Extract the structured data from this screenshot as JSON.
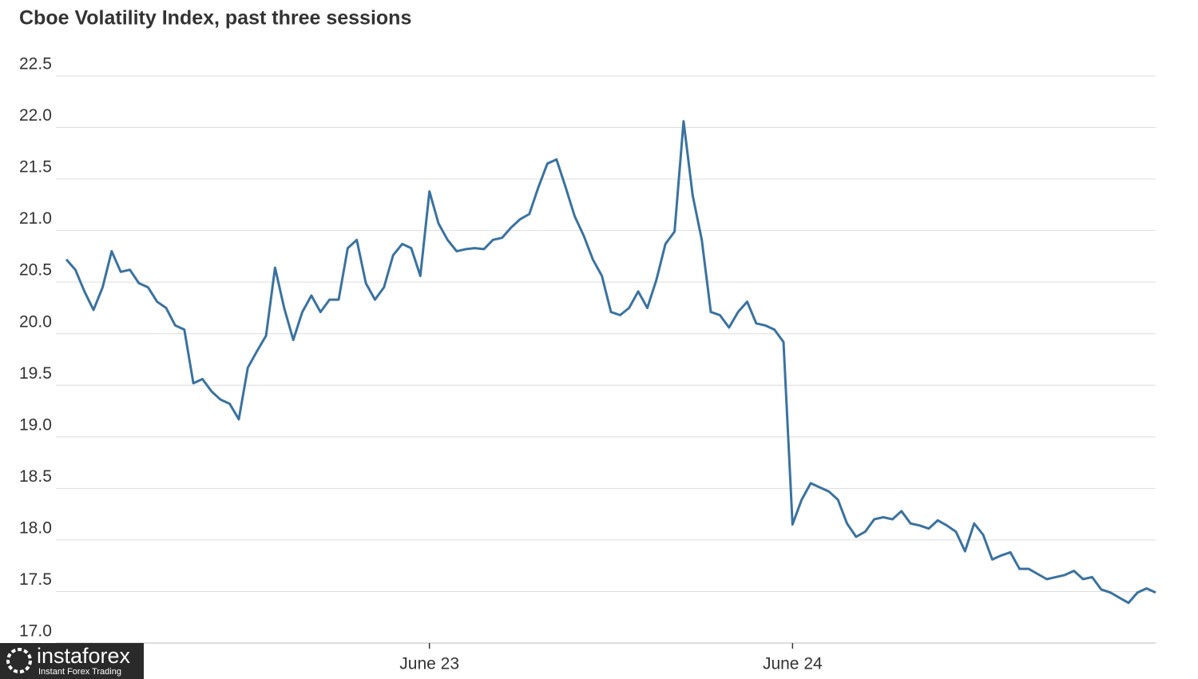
{
  "chart_data": {
    "type": "line",
    "title": "Cboe Volatility Index, past three sessions",
    "series": [
      {
        "name": "Cboe Volatility Index",
        "color": "#3a72a0",
        "values": [
          20.72,
          20.62,
          20.41,
          20.23,
          20.45,
          20.8,
          20.6,
          20.62,
          20.49,
          20.45,
          20.31,
          20.25,
          20.08,
          20.04,
          19.52,
          19.56,
          19.44,
          19.36,
          19.32,
          19.17,
          19.67,
          19.83,
          19.98,
          20.64,
          20.25,
          19.94,
          20.21,
          20.37,
          20.21,
          20.33,
          20.33,
          20.83,
          20.91,
          20.49,
          20.33,
          20.45,
          20.76,
          20.87,
          20.83,
          20.56,
          21.38,
          21.07,
          20.91,
          20.8,
          20.82,
          20.83,
          20.82,
          20.91,
          20.93,
          21.03,
          21.11,
          21.16,
          21.42,
          21.65,
          21.69,
          21.42,
          21.14,
          20.95,
          20.72,
          20.56,
          20.21,
          20.18,
          20.25,
          20.41,
          20.25,
          20.52,
          20.87,
          20.99,
          22.06,
          21.34,
          20.91,
          20.21,
          20.18,
          20.06,
          20.21,
          20.31,
          20.1,
          20.08,
          20.04,
          19.92,
          18.15,
          18.39,
          18.55,
          18.51,
          18.47,
          18.39,
          18.16,
          18.03,
          18.08,
          18.2,
          18.22,
          18.2,
          18.28,
          18.16,
          18.14,
          18.11,
          18.19,
          18.14,
          18.08,
          17.89,
          18.16,
          18.05,
          17.81,
          17.85,
          17.88,
          17.72,
          17.72,
          17.67,
          17.62,
          17.64,
          17.66,
          17.7,
          17.62,
          17.64,
          17.52,
          17.49,
          17.44,
          17.39,
          17.49,
          17.53,
          17.49
        ]
      }
    ],
    "xlim": [
      0,
      120
    ],
    "xticks": [
      {
        "value": 40,
        "label": "June 23"
      },
      {
        "value": 80,
        "label": "June 24"
      }
    ],
    "ylim": [
      17.0,
      22.5
    ],
    "yticks": [
      {
        "value": 17,
        "label": "17.0"
      },
      17.5,
      {
        "value": 18,
        "label": "18.0"
      },
      18.5,
      {
        "value": 19,
        "label": "19.0"
      },
      19.5,
      {
        "value": 20,
        "label": "20.0"
      },
      20.5,
      {
        "value": 21,
        "label": "21.0"
      },
      21.5,
      {
        "value": 22,
        "label": "22.0"
      },
      22.5
    ],
    "grid": true
  },
  "watermark": {
    "name": "instaforex",
    "tagline": "Instant Forex Trading"
  }
}
